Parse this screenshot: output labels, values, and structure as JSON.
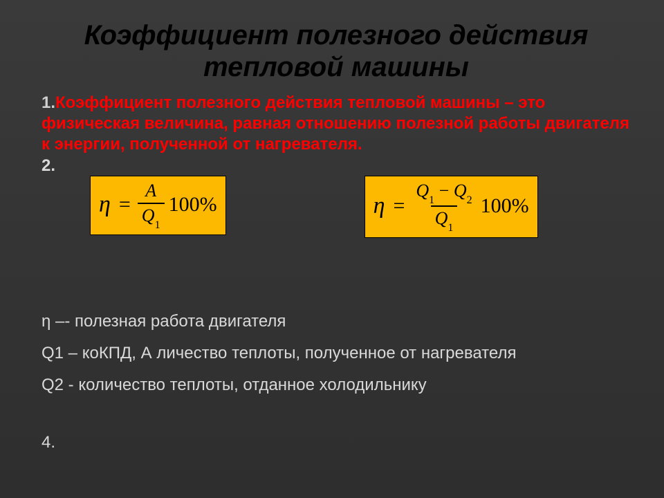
{
  "title": "Коэффициент полезного действия тепловой машины",
  "definition": {
    "number": "1.",
    "text": "Коэффициент полезного действия тепловой машины – это физическая величина, равная отношению полезной работы двигателя к энергии, полученной от нагревателя."
  },
  "item2_number": "2.",
  "formulas": {
    "left": {
      "eta": "η",
      "eq": "=",
      "numerator": "A",
      "denominator_var": "Q",
      "denominator_sub": "1",
      "hundred": "100%",
      "box_bg": "#fdb800"
    },
    "right": {
      "eta": "η",
      "eq": "=",
      "num_var1": "Q",
      "num_sub1": "1",
      "minus": "−",
      "num_var2": "Q",
      "num_sub2": "2",
      "den_var": "Q",
      "den_sub": "1",
      "hundred": "100%",
      "box_bg": "#fdb800"
    }
  },
  "legend": {
    "l1": "η –- полезная работа двигателя",
    "l2": "Q1 – коКПД, А личество теплоты, полученное от нагревателя",
    "l3": "Q2 -  количество теплоты, отданное холодильнику"
  },
  "item4": "4.",
  "colors": {
    "title": "#000000",
    "definition": "#ff0000",
    "body_text": "#d9d9d9",
    "formula_bg": "#fdb800",
    "formula_text": "#000000",
    "slide_bg_top": "#3a3a3a",
    "slide_bg_bottom": "#2e2e2e"
  },
  "typography": {
    "title_fontsize": 40,
    "body_fontsize": 24,
    "formula_fontsize": 30,
    "title_style": "bold italic",
    "definition_style": "bold"
  }
}
